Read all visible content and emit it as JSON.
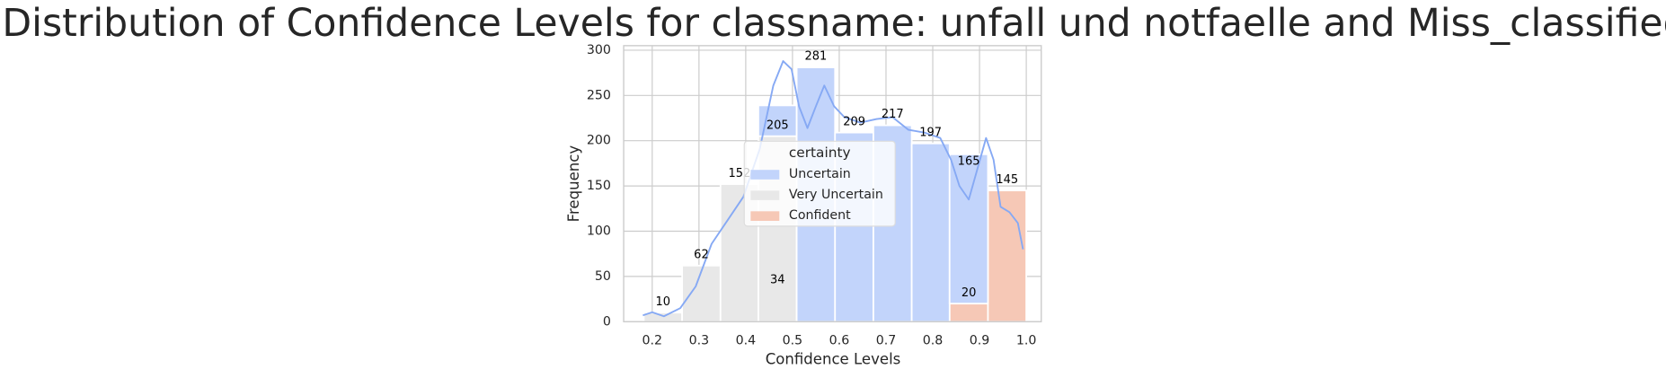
{
  "chart_data": {
    "type": "histogram",
    "title": "Distribution of Confidence Levels for classname: unfall und notfaelle and Miss_classified",
    "x_label": "Confidence Levels",
    "y_label": "Frequency",
    "bins": [
      0.182,
      0.264,
      0.346,
      0.427,
      0.509,
      0.591,
      0.673,
      0.755,
      0.836,
      0.918,
      1.0
    ],
    "series": [
      {
        "name": "Uncertain",
        "color": "#c2d4fb",
        "values": [
          null,
          null,
          null,
          34,
          281,
          209,
          217,
          197,
          165,
          null
        ],
        "kde": {
          "color": "#86a9f4",
          "x": [
            0.18,
            0.2,
            0.225,
            0.26,
            0.293,
            0.327,
            0.361,
            0.395,
            0.43,
            0.459,
            0.48,
            0.498,
            0.514,
            0.532,
            0.55,
            0.568,
            0.589,
            0.611,
            0.645,
            0.68,
            0.714,
            0.748,
            0.782,
            0.816,
            0.839,
            0.857,
            0.877,
            0.895,
            0.914,
            0.93,
            0.945,
            0.964,
            0.982,
            0.993
          ],
          "values": [
            7,
            10.5,
            6,
            15,
            39,
            86,
            112,
            138,
            191,
            261,
            288,
            279,
            238,
            214,
            238,
            261,
            238,
            226,
            220,
            224,
            226,
            212,
            209,
            203,
            179,
            150,
            135,
            168,
            203,
            179,
            127,
            121,
            109,
            80
          ]
        }
      },
      {
        "name": "Very Uncertain",
        "color": "#e8e8e8",
        "values": [
          10,
          62,
          152,
          205,
          null,
          null,
          null,
          null,
          null,
          null
        ]
      },
      {
        "name": "Confident",
        "color": "#f6c8b6",
        "values": [
          null,
          null,
          null,
          null,
          null,
          null,
          null,
          null,
          20,
          145
        ]
      }
    ],
    "legend_title": "certainty",
    "legend": "center",
    "xlim": [
      0.139,
      1.032
    ],
    "ylim": [
      0,
      305
    ],
    "xticks": [
      0.2,
      0.3,
      0.4,
      0.5,
      0.6,
      0.7,
      0.8,
      0.9,
      {
        "value": 1,
        "label": "1.0"
      }
    ],
    "yticks": [
      0,
      50,
      100,
      150,
      200,
      250,
      300
    ],
    "grid": true
  }
}
